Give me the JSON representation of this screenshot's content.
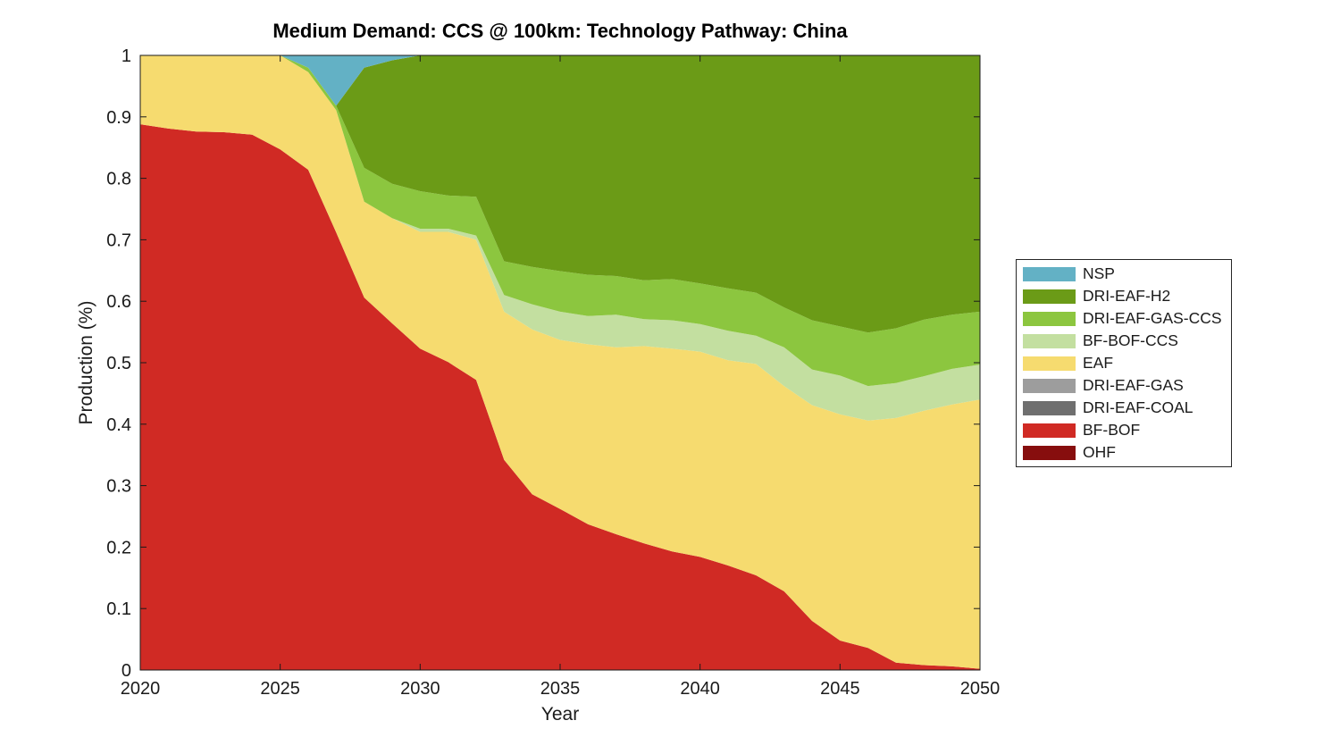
{
  "figure": {
    "title": "Medium Demand: CCS @ 100km: Technology Pathway: China",
    "xlabel": "Year",
    "ylabel": "Production (%)"
  },
  "colors": {
    "axis": "#1a1a1a",
    "background": "#ffffff",
    "legend_border": "#262626"
  },
  "chart_data": {
    "type": "area",
    "stacked": true,
    "title": "Medium Demand: CCS @ 100km: Technology Pathway: China",
    "xlabel": "Year",
    "ylabel": "Production (%)",
    "xlim": [
      2020,
      2050
    ],
    "ylim": [
      0,
      1
    ],
    "grid": false,
    "legend_position": "right-outside",
    "x_ticks": [
      2020,
      2025,
      2030,
      2035,
      2040,
      2045,
      2050
    ],
    "x_tick_labels": [
      "2020",
      "2025",
      "2030",
      "2035",
      "2040",
      "2045",
      "2050"
    ],
    "y_ticks": [
      0,
      0.1,
      0.2,
      0.3,
      0.4,
      0.5,
      0.6,
      0.7,
      0.8,
      0.9,
      1
    ],
    "y_tick_labels": [
      "0",
      "0.1",
      "0.2",
      "0.3",
      "0.4",
      "0.5",
      "0.6",
      "0.7",
      "0.8",
      "0.9",
      "1"
    ],
    "x": [
      2020,
      2021,
      2022,
      2023,
      2024,
      2025,
      2026,
      2027,
      2028,
      2029,
      2030,
      2031,
      2032,
      2033,
      2034,
      2035,
      2036,
      2037,
      2038,
      2039,
      2040,
      2041,
      2042,
      2043,
      2044,
      2045,
      2046,
      2047,
      2048,
      2049,
      2050
    ],
    "legend_order_top_to_bottom": [
      "NSP",
      "DRI-EAF-H2",
      "DRI-EAF-GAS-CCS",
      "BF-BOF-CCS",
      "EAF",
      "DRI-EAF-GAS",
      "DRI-EAF-COAL",
      "BF-BOF",
      "OHF"
    ],
    "series": [
      {
        "name": "OHF",
        "color": "#870e0e",
        "values": [
          0,
          0,
          0,
          0,
          0,
          0,
          0,
          0,
          0,
          0,
          0,
          0,
          0,
          0,
          0,
          0,
          0,
          0,
          0,
          0,
          0,
          0,
          0,
          0,
          0,
          0,
          0,
          0,
          0,
          0,
          0
        ]
      },
      {
        "name": "BF-BOF",
        "color": "#d02a24",
        "values": [
          0.888,
          0.881,
          0.876,
          0.875,
          0.871,
          0.847,
          0.814,
          0.712,
          0.606,
          0.564,
          0.523,
          0.501,
          0.472,
          0.342,
          0.286,
          0.262,
          0.237,
          0.221,
          0.206,
          0.193,
          0.184,
          0.17,
          0.154,
          0.128,
          0.08,
          0.048,
          0.036,
          0.012,
          0.008,
          0.006,
          0.002
        ]
      },
      {
        "name": "DRI-EAF-COAL",
        "color": "#6f6f6f",
        "values": [
          0,
          0,
          0,
          0,
          0,
          0,
          0,
          0,
          0,
          0,
          0,
          0,
          0,
          0,
          0,
          0,
          0,
          0,
          0,
          0,
          0,
          0,
          0,
          0,
          0,
          0,
          0,
          0,
          0,
          0,
          0
        ]
      },
      {
        "name": "DRI-EAF-GAS",
        "color": "#9d9d9d",
        "values": [
          0,
          0,
          0,
          0,
          0,
          0,
          0,
          0,
          0,
          0,
          0,
          0,
          0,
          0,
          0,
          0,
          0,
          0,
          0,
          0,
          0,
          0,
          0,
          0,
          0,
          0,
          0,
          0,
          0,
          0,
          0
        ]
      },
      {
        "name": "EAF",
        "color": "#f6db6f",
        "values": [
          0.112,
          0.119,
          0.124,
          0.125,
          0.129,
          0.153,
          0.159,
          0.199,
          0.156,
          0.171,
          0.19,
          0.212,
          0.228,
          0.241,
          0.268,
          0.275,
          0.293,
          0.304,
          0.321,
          0.33,
          0.334,
          0.334,
          0.344,
          0.334,
          0.351,
          0.368,
          0.37,
          0.398,
          0.414,
          0.426,
          0.438
        ]
      },
      {
        "name": "BF-BOF-CCS",
        "color": "#c3dfa0",
        "values": [
          0,
          0,
          0,
          0,
          0,
          0,
          0,
          0,
          0,
          0,
          0.005,
          0.005,
          0.007,
          0.027,
          0.041,
          0.046,
          0.046,
          0.053,
          0.044,
          0.046,
          0.045,
          0.048,
          0.046,
          0.063,
          0.058,
          0.063,
          0.056,
          0.057,
          0.056,
          0.058,
          0.057
        ]
      },
      {
        "name": "DRI-EAF-GAS-CCS",
        "color": "#8cc63f",
        "values": [
          0,
          0,
          0,
          0,
          0,
          0,
          0.007,
          0.007,
          0.055,
          0.056,
          0.061,
          0.054,
          0.063,
          0.055,
          0.061,
          0.066,
          0.067,
          0.063,
          0.063,
          0.067,
          0.066,
          0.069,
          0.07,
          0.065,
          0.08,
          0.08,
          0.087,
          0.089,
          0.092,
          0.088,
          0.086
        ]
      },
      {
        "name": "DRI-EAF-H2",
        "color": "#6b9b17",
        "values": [
          0,
          0,
          0,
          0,
          0,
          0,
          0,
          0,
          0.163,
          0.201,
          0.221,
          0.228,
          0.23,
          0.335,
          0.344,
          0.351,
          0.357,
          0.359,
          0.366,
          0.364,
          0.371,
          0.379,
          0.386,
          0.41,
          0.431,
          0.441,
          0.451,
          0.444,
          0.43,
          0.422,
          0.417
        ]
      },
      {
        "name": "NSP",
        "color": "#63b1c5",
        "values": [
          0,
          0,
          0,
          0,
          0,
          0,
          0.02,
          0.082,
          0.02,
          0.008,
          0,
          0,
          0,
          0,
          0,
          0,
          0,
          0,
          0,
          0,
          0,
          0,
          0,
          0,
          0,
          0,
          0,
          0,
          0,
          0,
          0
        ]
      }
    ]
  }
}
